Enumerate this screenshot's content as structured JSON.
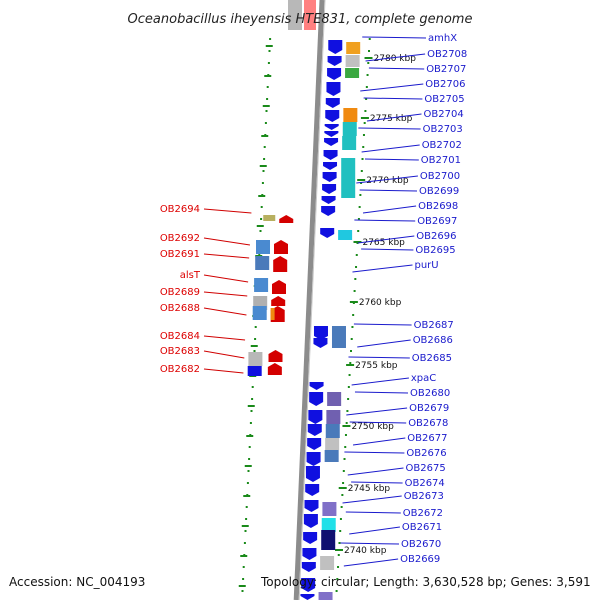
{
  "title": "Oceanobacillus iheyensis HTE831, complete genome",
  "footer": {
    "accession": "Accession: NC_004193",
    "summary": "Topology: circular; Length: 3,630,528 bp; Genes: 3,591"
  },
  "colors": {
    "forward": "#d40000",
    "reverse": "#1010e0",
    "axis": "#8c8c8c",
    "tick": "#1a8a1a",
    "label_right": "#1a1acc",
    "label_left": "#d00000"
  },
  "kbp_ticks": [
    "2780 kbp",
    "2775 kbp",
    "2770 kbp",
    "2765 kbp",
    "2760 kbp",
    "2755 kbp",
    "2750 kbp",
    "2745 kbp",
    "2740 kbp"
  ],
  "genes_right": [
    "amhX",
    "OB2708",
    "OB2707",
    "OB2706",
    "OB2705",
    "OB2704",
    "OB2703",
    "OB2702",
    "OB2701",
    "OB2700",
    "OB2699",
    "OB2698",
    "OB2697",
    "OB2696",
    "OB2695",
    "purU",
    "OB2687",
    "OB2686",
    "OB2685",
    "xpaC",
    "OB2680",
    "OB2679",
    "OB2678",
    "OB2677",
    "OB2676",
    "OB2675",
    "OB2674",
    "OB2673",
    "OB2672",
    "OB2671",
    "OB2670",
    "OB2669"
  ],
  "genes_left": [
    "OB2694",
    "OB2692",
    "OB2691",
    "alsT",
    "OB2689",
    "OB2688",
    "OB2684",
    "OB2683",
    "OB2682"
  ]
}
